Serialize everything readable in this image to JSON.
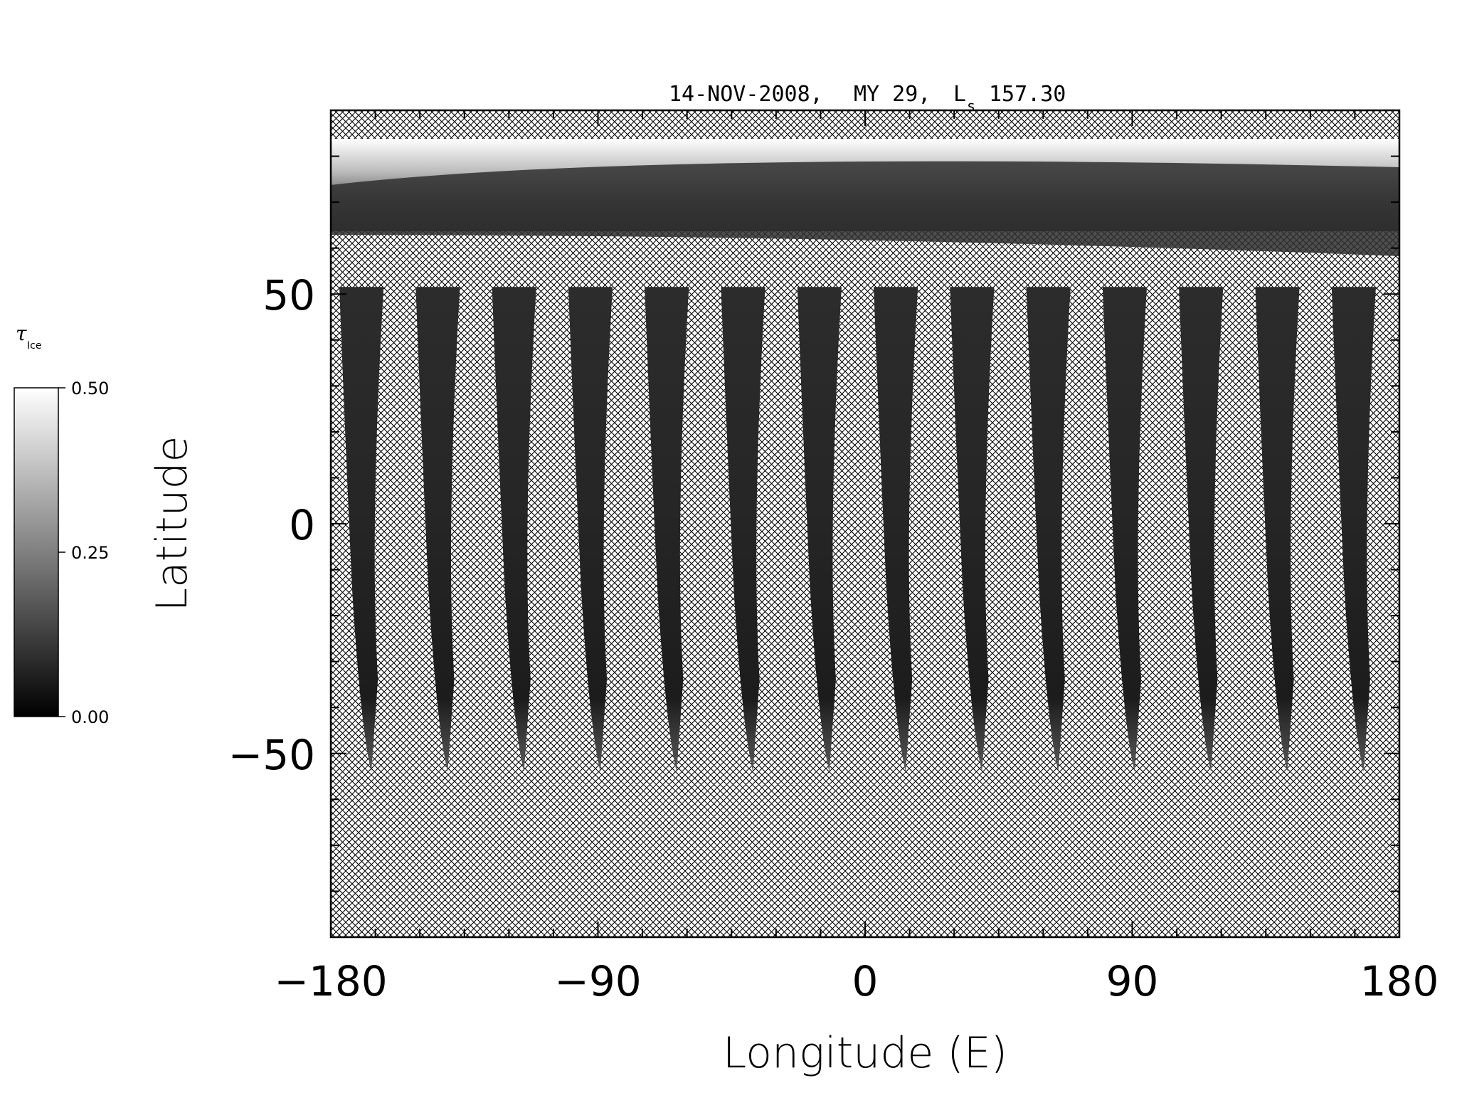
{
  "header": {
    "date": "14-NOV-2008,",
    "mars_year": "MY 29,",
    "ls_symbol": "L",
    "ls_subscript": "s",
    "ls_value": "157.30"
  },
  "map": {
    "x_axis": {
      "label": "Longitude (E)",
      "range": [
        -180,
        180
      ],
      "labeled_ticks": [
        -180,
        -90,
        0,
        90,
        180
      ],
      "labels": [
        "−180",
        "−90",
        "0",
        "90",
        "180"
      ],
      "minor_step": 15
    },
    "y_axis": {
      "label": "Latitude",
      "range": [
        -90,
        90
      ],
      "labeled_ticks": [
        -50,
        0,
        50
      ],
      "labels": [
        "−50",
        "0",
        "50"
      ],
      "minor_step": 10
    },
    "no_data_pattern": "crosshatch",
    "polar_cap_top_lat": 84,
    "swath_count": 14,
    "swaths_bottom_lat": -54,
    "swaths_top_lat": 50
  },
  "colorbar": {
    "symbol": "τ",
    "subscript": "Ice",
    "min": 0.0,
    "max": 0.5,
    "tick_values": [
      0.0,
      0.25,
      0.5
    ],
    "tick_labels": [
      "0.00",
      "0.25",
      "0.50"
    ],
    "colors": [
      "#000000",
      "#ffffff"
    ]
  }
}
